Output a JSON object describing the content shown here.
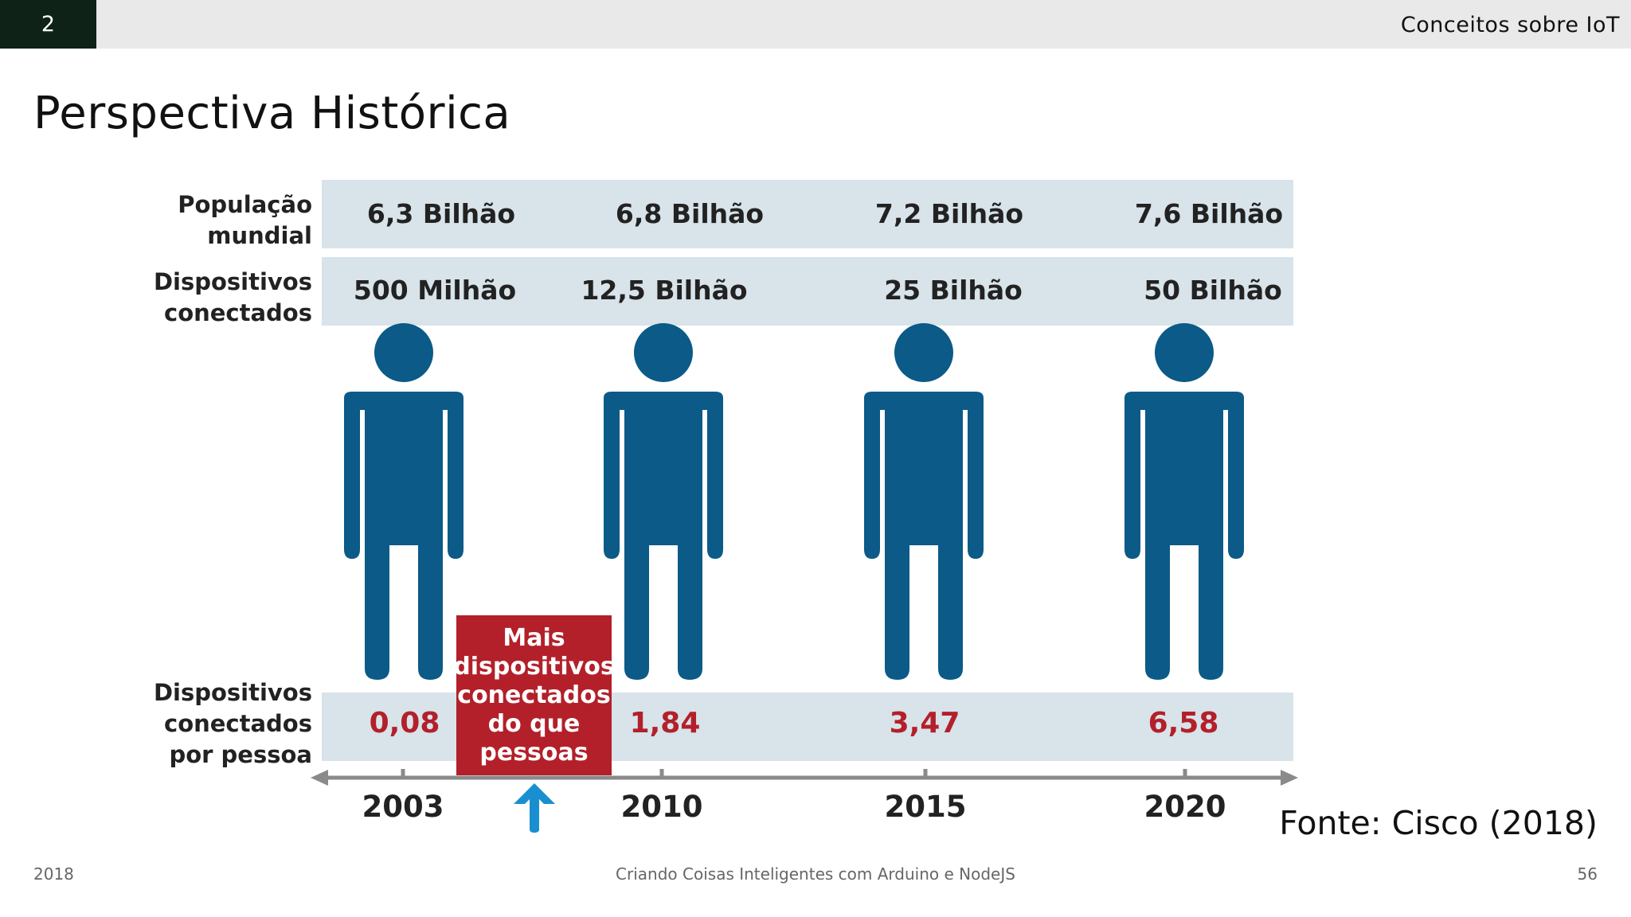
{
  "header": {
    "slide_number": "2",
    "section_title": "Conceitos sobre IoT"
  },
  "title": "Perspectiva Histórica",
  "figure": {
    "row_labels": {
      "population": "População\nmundial",
      "devices": "Dispositivos\nconectados",
      "per_person": "Dispositivos\nconectados\npor pessoa"
    },
    "columns": [
      {
        "year": "2003",
        "population": "6,3 Bilhão",
        "devices": "500 Milhão",
        "per_person": "0,08"
      },
      {
        "year": "2010",
        "population": "6,8 Bilhão",
        "devices": "12,5 Bilhão",
        "per_person": "1,84"
      },
      {
        "year": "2015",
        "population": "7,2 Bilhão",
        "devices": "25 Bilhão",
        "per_person": "3,47"
      },
      {
        "year": "2020",
        "population": "7,6 Bilhão",
        "devices": "50 Bilhão",
        "per_person": "6,58"
      }
    ],
    "highlight_box": "Mais\ndispositivos\nconectados\ndo que\npessoas",
    "colors": {
      "person": "#0b5a87",
      "band": "#d8e3ea",
      "highlight": "#b3202a",
      "arrow": "#1a8fd0",
      "axis": "#8a8a8a"
    }
  },
  "source": "Fonte: Cisco (2018)",
  "footer": {
    "year": "2018",
    "course": "Criando Coisas Inteligentes com Arduino e NodeJS",
    "page": "56"
  }
}
